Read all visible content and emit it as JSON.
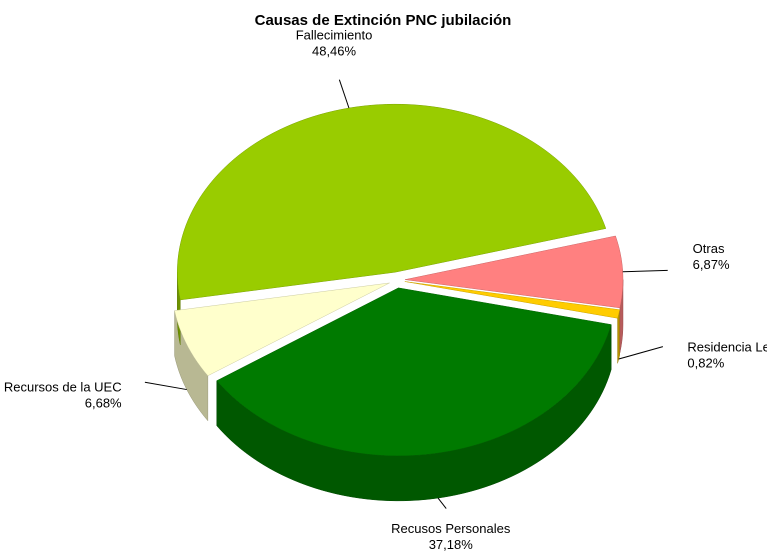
{
  "chart_data": {
    "type": "pie",
    "title": "Causas de Extinción PNC jubilación",
    "categories": [
      "Fallecimiento",
      "Otras",
      "Residencia Legal",
      "Recusos Personales",
      "Recursos de la UEC"
    ],
    "values": [
      48.46,
      6.87,
      0.82,
      37.18,
      6.68
    ],
    "value_labels": [
      "48,46%",
      "6,87%",
      "0,82%",
      "37,18%",
      "6,68%"
    ],
    "colors": [
      "#99cc00",
      "#ff8080",
      "#ffcc00",
      "#007a00",
      "#ffffcc"
    ]
  }
}
